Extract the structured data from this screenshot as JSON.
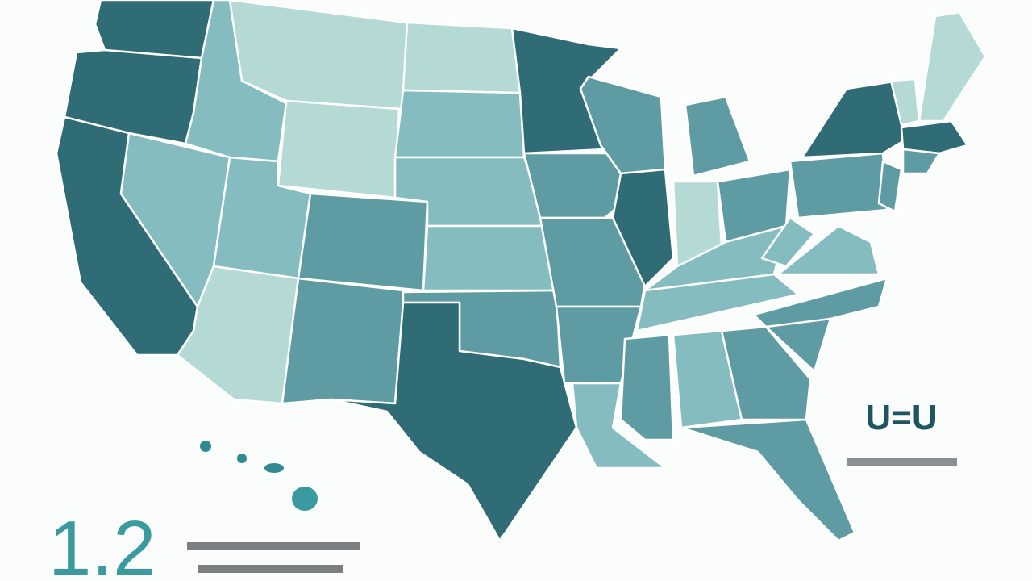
{
  "stat": {
    "value": "1.2"
  },
  "logo": {
    "text": "U=U"
  }
}
